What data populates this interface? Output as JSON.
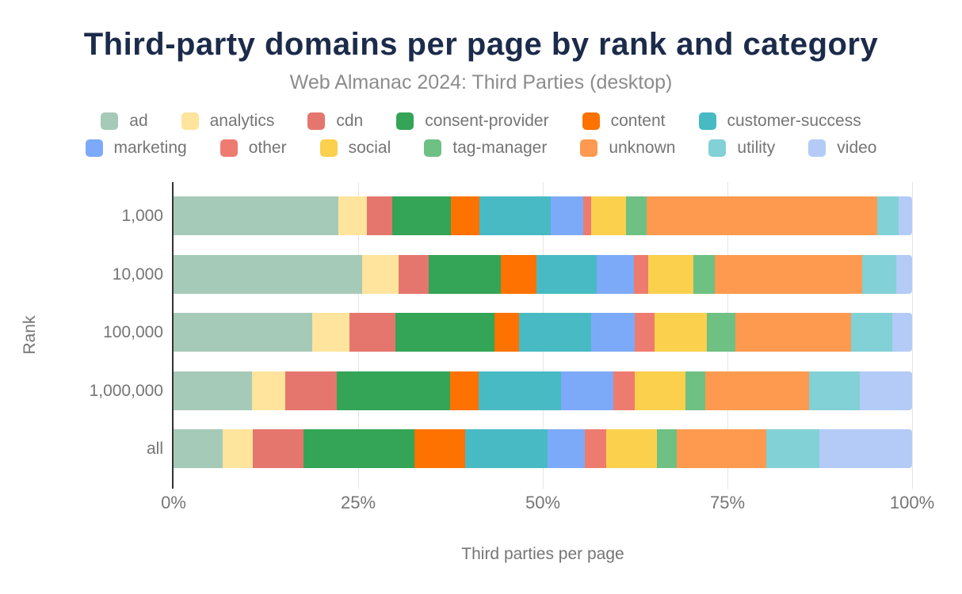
{
  "header": {
    "title": "Third-party domains per page by rank and category",
    "subtitle": "Web Almanac 2024: Third Parties (desktop)"
  },
  "chart_data": {
    "type": "bar",
    "orientation": "horizontal",
    "stacked": true,
    "title": "Third-party domains per page by rank and category",
    "subtitle": "Web Almanac 2024: Third Parties (desktop)",
    "xlabel": "Third parties per page",
    "ylabel": "Rank",
    "xlim": [
      0,
      100
    ],
    "x_tick_labels": [
      "0%",
      "25%",
      "50%",
      "75%",
      "100%"
    ],
    "grid": true,
    "legend_position": "top-center",
    "categories": [
      "1,000",
      "10,000",
      "100,000",
      "1,000,000",
      "all"
    ],
    "value_unit": "percent",
    "series": [
      {
        "name": "ad",
        "color": "#a6cab8",
        "values": [
          22.3,
          25.5,
          18.8,
          10.6,
          6.6
        ]
      },
      {
        "name": "analytics",
        "color": "#fee49c",
        "values": [
          3.9,
          5.0,
          5.0,
          4.5,
          4.1
        ]
      },
      {
        "name": "cdn",
        "color": "#e5766d",
        "values": [
          3.4,
          4.0,
          6.2,
          7.0,
          6.9
        ]
      },
      {
        "name": "consent-provider",
        "color": "#34a456",
        "values": [
          8.0,
          9.8,
          13.5,
          15.3,
          15.0
        ]
      },
      {
        "name": "content",
        "color": "#fd7200",
        "values": [
          3.8,
          4.8,
          3.3,
          3.9,
          6.9
        ]
      },
      {
        "name": "customer-success",
        "color": "#48bac4",
        "values": [
          9.7,
          8.2,
          9.7,
          11.2,
          11.1
        ]
      },
      {
        "name": "marketing",
        "color": "#7daaf8",
        "values": [
          4.4,
          5.0,
          6.0,
          7.1,
          5.1
        ]
      },
      {
        "name": "other",
        "color": "#ee7b70",
        "values": [
          1.1,
          2.0,
          2.6,
          2.8,
          2.9
        ]
      },
      {
        "name": "social",
        "color": "#fbd04d",
        "values": [
          4.7,
          6.1,
          7.1,
          6.9,
          6.9
        ]
      },
      {
        "name": "tag-manager",
        "color": "#6ec083",
        "values": [
          2.8,
          2.9,
          3.9,
          2.7,
          2.6
        ]
      },
      {
        "name": "unknown",
        "color": "#fd9a50",
        "values": [
          31.2,
          20.0,
          15.6,
          14.1,
          12.2
        ]
      },
      {
        "name": "utility",
        "color": "#81d1d6",
        "values": [
          2.9,
          4.6,
          5.6,
          6.8,
          7.2
        ]
      },
      {
        "name": "video",
        "color": "#b3cbf6",
        "values": [
          1.8,
          2.1,
          2.7,
          7.1,
          12.5
        ]
      }
    ]
  },
  "colors": {
    "title_text": "#1c2b4a",
    "subtitle_text": "#8c8c8c",
    "axis_text": "#757575",
    "legend_text": "#757575",
    "axis_line": "#333333",
    "gridline": "#e6e6e6",
    "background": "#ffffff"
  }
}
